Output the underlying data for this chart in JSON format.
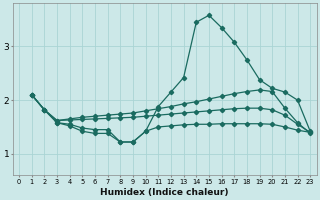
{
  "xlabel": "Humidex (Indice chaleur)",
  "bg_color": "#cce8e8",
  "line_color": "#1a6b60",
  "grid_color": "#aad4d4",
  "xlim": [
    -0.5,
    23.5
  ],
  "ylim": [
    0.6,
    3.8
  ],
  "yticks": [
    1,
    2,
    3
  ],
  "xticks": [
    0,
    1,
    2,
    3,
    4,
    5,
    6,
    7,
    8,
    9,
    10,
    11,
    12,
    13,
    14,
    15,
    16,
    17,
    18,
    19,
    20,
    21,
    22,
    23
  ],
  "series": [
    {
      "x": [
        1,
        2,
        3,
        4,
        5,
        6,
        7,
        8,
        9,
        10,
        11,
        12,
        13,
        14,
        15,
        16,
        17,
        18,
        19,
        20,
        21,
        22,
        23
      ],
      "y": [
        2.1,
        1.82,
        1.58,
        1.55,
        1.48,
        1.45,
        1.45,
        1.22,
        1.22,
        1.42,
        1.88,
        2.15,
        2.42,
        3.45,
        3.58,
        3.35,
        3.08,
        2.75,
        2.38,
        2.22,
        2.15,
        2.0,
        1.42
      ]
    },
    {
      "x": [
        1,
        2,
        3,
        4,
        5,
        6,
        7,
        8,
        9,
        10,
        11,
        12,
        13,
        14,
        15,
        16,
        17,
        18,
        19,
        20,
        21,
        22,
        23
      ],
      "y": [
        2.1,
        1.82,
        1.62,
        1.65,
        1.68,
        1.7,
        1.72,
        1.74,
        1.76,
        1.8,
        1.84,
        1.88,
        1.93,
        1.97,
        2.02,
        2.07,
        2.12,
        2.16,
        2.19,
        2.16,
        1.85,
        1.58,
        1.38
      ]
    },
    {
      "x": [
        1,
        2,
        3,
        4,
        5,
        6,
        7,
        8,
        9,
        10,
        11,
        12,
        13,
        14,
        15,
        16,
        17,
        18,
        19,
        20,
        21,
        22,
        23
      ],
      "y": [
        2.1,
        1.82,
        1.62,
        1.63,
        1.64,
        1.65,
        1.66,
        1.67,
        1.68,
        1.7,
        1.72,
        1.74,
        1.76,
        1.78,
        1.8,
        1.82,
        1.84,
        1.85,
        1.85,
        1.82,
        1.72,
        1.55,
        1.4
      ]
    },
    {
      "x": [
        1,
        2,
        3,
        4,
        5,
        6,
        7,
        8,
        9,
        10,
        11,
        12,
        13,
        14,
        15,
        16,
        17,
        18,
        19,
        20,
        21,
        22,
        23
      ],
      "y": [
        2.1,
        1.82,
        1.58,
        1.52,
        1.42,
        1.38,
        1.38,
        1.22,
        1.22,
        1.42,
        1.5,
        1.52,
        1.54,
        1.55,
        1.55,
        1.56,
        1.56,
        1.56,
        1.56,
        1.55,
        1.5,
        1.44,
        1.4
      ]
    }
  ]
}
